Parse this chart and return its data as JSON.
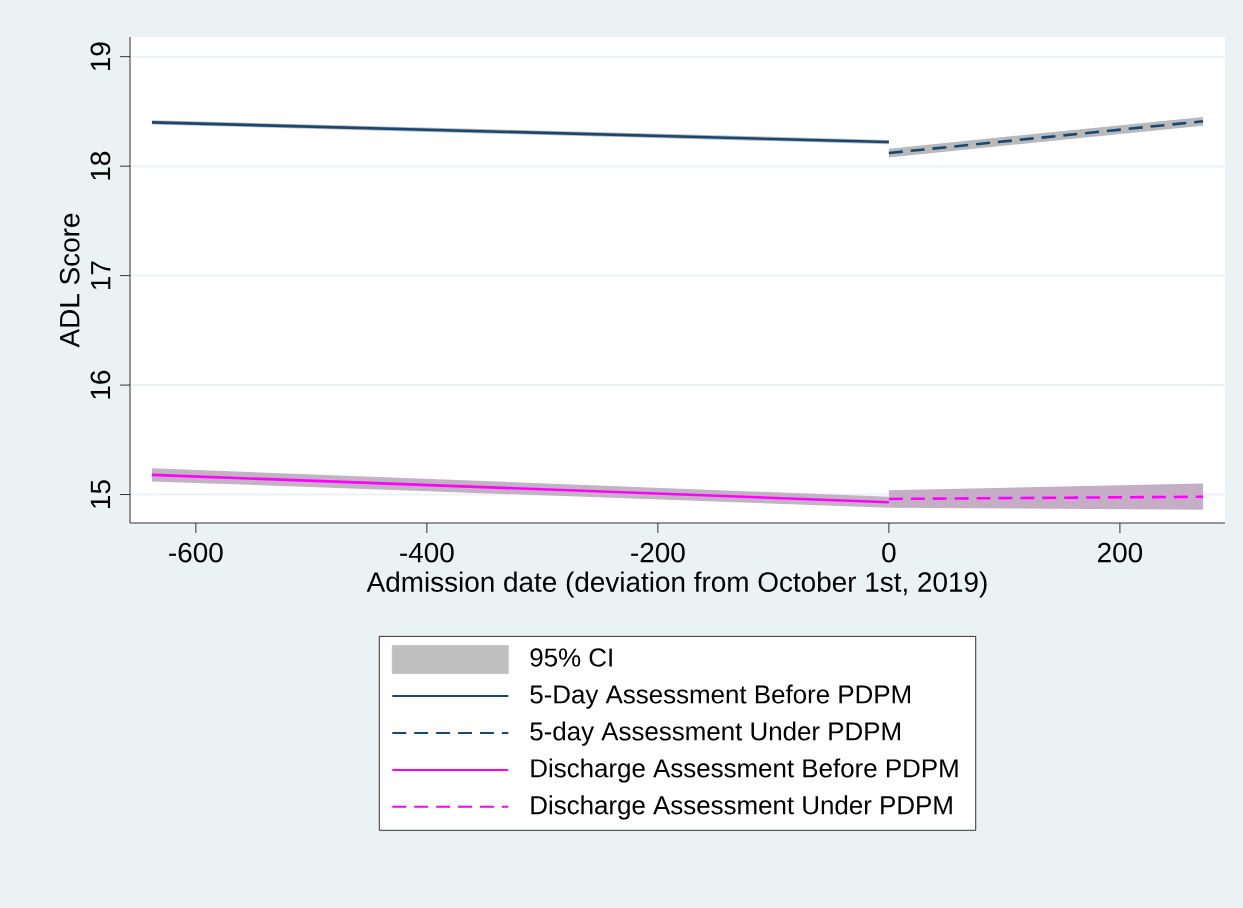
{
  "chart_data": {
    "type": "line",
    "xlabel": "Admission date (deviation from October 1st, 2019)",
    "ylabel": "ADL Score",
    "xlim": [
      -657,
      291
    ],
    "ylim": [
      14.74,
      19.18
    ],
    "xticks": [
      -600,
      -400,
      -200,
      0,
      200
    ],
    "yticks": [
      15,
      16,
      17,
      18,
      19
    ],
    "grid": "y",
    "legend": "bottom",
    "series": [
      {
        "name": "95% CI",
        "type": "area",
        "color": "#bfbfbf"
      },
      {
        "name": "5-Day Assessment Before PDPM",
        "color": "#1a476f",
        "line_style": "solid",
        "x": [
          -638,
          0
        ],
        "values": [
          18.4,
          18.22
        ],
        "lower": [
          18.38,
          18.2
        ],
        "upper": [
          18.42,
          18.24
        ]
      },
      {
        "name": "5-day Assessment Under PDPM",
        "color": "#1a476f",
        "line_style": "dashed",
        "x": [
          0,
          272
        ],
        "values": [
          18.12,
          18.41
        ],
        "lower": [
          18.08,
          18.37
        ],
        "upper": [
          18.16,
          18.45
        ]
      },
      {
        "name": "Discharge Assessment Before PDPM",
        "color": "#ff00ff",
        "line_style": "solid",
        "x": [
          -638,
          0
        ],
        "values": [
          15.18,
          14.93
        ],
        "lower": [
          15.12,
          14.88
        ],
        "upper": [
          15.24,
          14.98
        ]
      },
      {
        "name": "Discharge Assessment Under PDPM",
        "color": "#ff00ff",
        "line_style": "dashed",
        "x": [
          0,
          272
        ],
        "values": [
          14.96,
          14.98
        ],
        "lower": [
          14.88,
          14.86
        ],
        "upper": [
          15.04,
          15.1
        ]
      }
    ]
  }
}
